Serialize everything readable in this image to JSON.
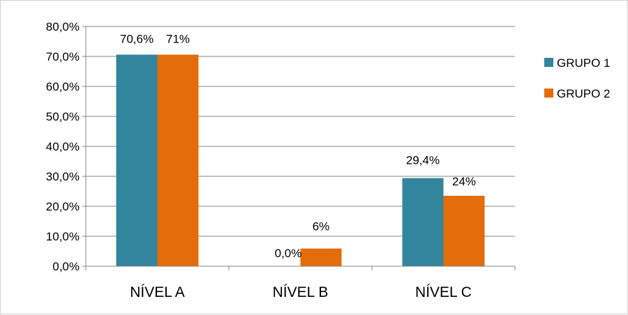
{
  "chart_data": {
    "type": "bar",
    "categories": [
      "NÍVEL A",
      "NÍVEL B",
      "NÍVEL C"
    ],
    "series": [
      {
        "name": "GRUPO 1",
        "color": "#31859c",
        "values": [
          70.6,
          0.0,
          29.4
        ],
        "labels": [
          "70,6%",
          "0,0%",
          "29,4%"
        ]
      },
      {
        "name": "GRUPO 2",
        "color": "#e46c0a",
        "values": [
          70.6,
          5.9,
          23.5
        ],
        "labels": [
          "71%",
          "6%",
          "24%"
        ]
      }
    ],
    "ylim": [
      0,
      80
    ],
    "yticks": [
      0,
      10,
      20,
      30,
      40,
      50,
      60,
      70,
      80
    ],
    "ytick_labels": [
      "0,0%",
      "10,0%",
      "20,0%",
      "30,0%",
      "40,0%",
      "50,0%",
      "60,0%",
      "70,0%",
      "80,0%"
    ],
    "grid": true,
    "legend_position": "right"
  }
}
